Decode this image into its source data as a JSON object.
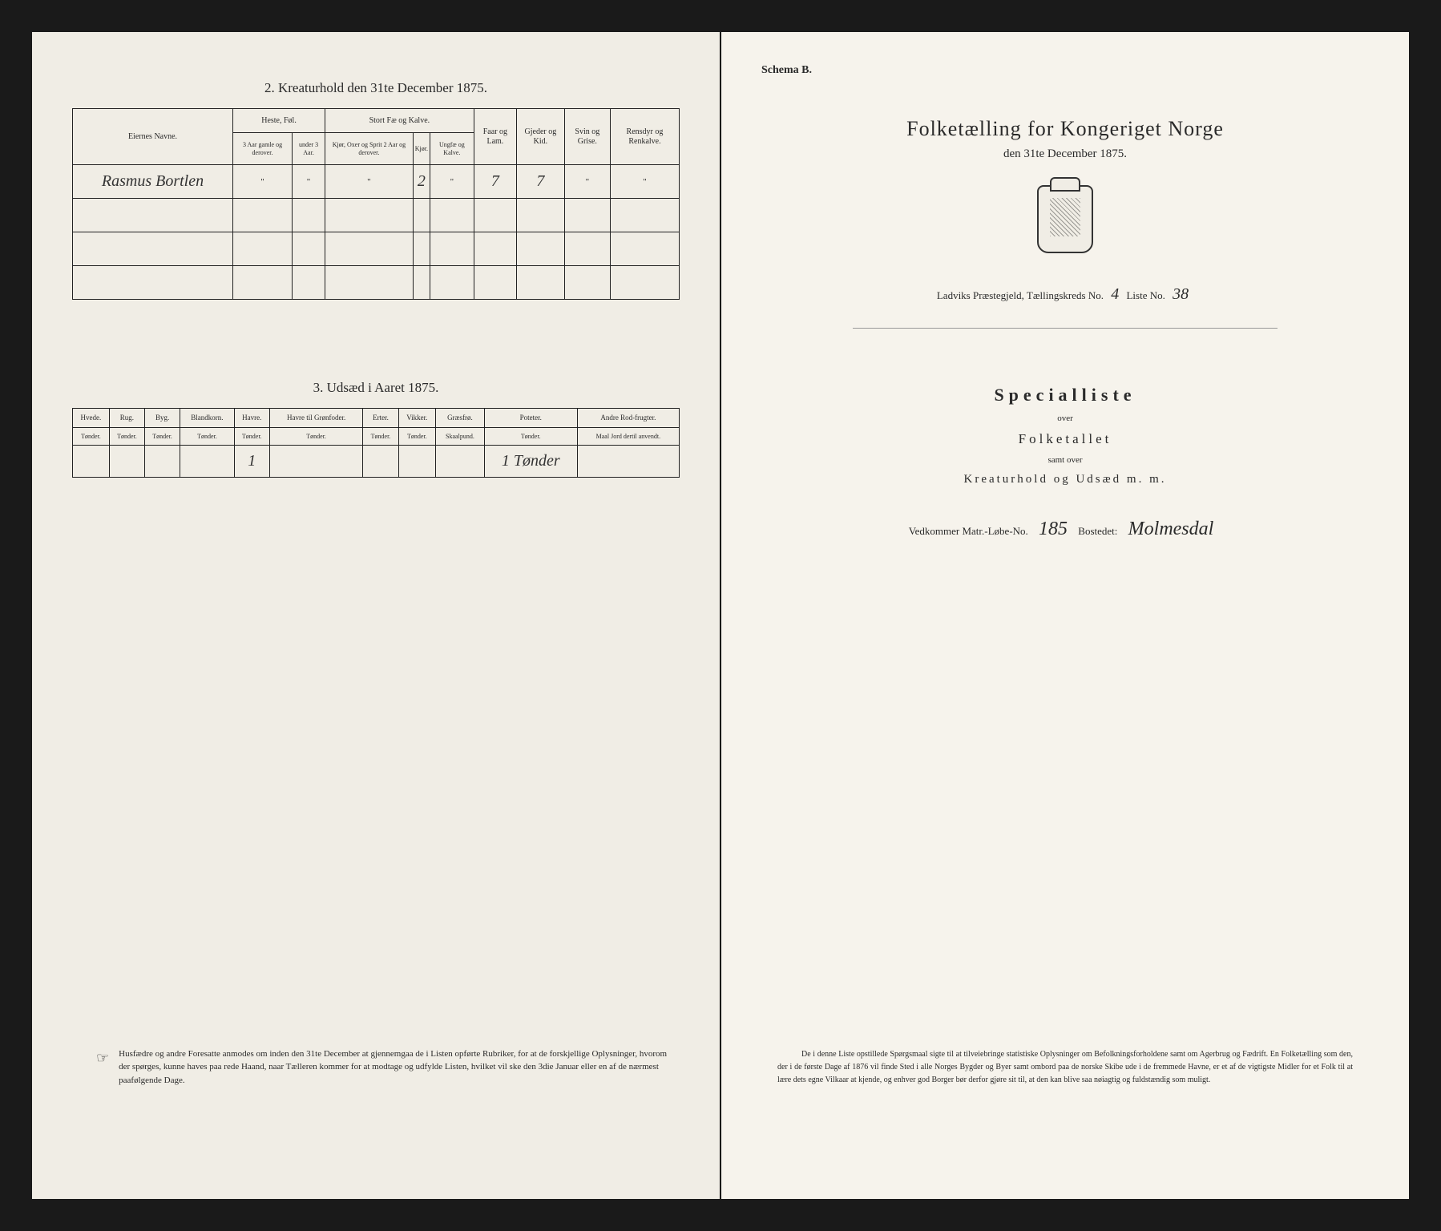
{
  "left": {
    "section2_title": "2. Kreaturhold den 31te December 1875.",
    "table2": {
      "headers": {
        "owner": "Eiernes Navne.",
        "horses": "Heste, Føl.",
        "cattle": "Stort Fæ og Kalve.",
        "sheep": "Faar og Lam.",
        "goats": "Gjeder og Kid.",
        "pigs": "Svin og Grise.",
        "reindeer": "Rensdyr og Renkalve."
      },
      "sub": {
        "h1": "3 Aar gamle og derover.",
        "h2": "under 3 Aar.",
        "c1": "Kjør, Oxer og Sprit 2 Aar og derover.",
        "c2": "Kjør.",
        "c3": "Ungfæ og Kalve."
      },
      "row1": {
        "owner": "Rasmus Bortlen",
        "h1": "\"",
        "h2": "\"",
        "c1": "\"",
        "c2": "2",
        "c3": "\"",
        "sheep": "7",
        "goats": "7",
        "pigs": "\"",
        "reindeer": "\""
      }
    },
    "section3_title": "3. Udsæd i Aaret 1875.",
    "table3": {
      "headers": [
        "Hvede.",
        "Rug.",
        "Byg.",
        "Blandkorn.",
        "Havre.",
        "Havre til Grønfoder.",
        "Erter.",
        "Vikker.",
        "Græsfrø.",
        "Poteter.",
        "Andre Rod-frugter."
      ],
      "unit": "Tønder.",
      "unit_special": "Skaalpund.",
      "unit_last": "Maal Jord dertil anvendt.",
      "row": {
        "havre": "1",
        "poteter": "1 Tønder"
      }
    },
    "footnote": "Husfædre og andre Foresatte anmodes om inden den 31te December at gjennemgaa de i Listen opførte Rubriker, for at de forskjellige Oplysninger, hvorom der spørges, kunne haves paa rede Haand, naar Tælleren kommer for at modtage og udfylde Listen, hvilket vil ske den 3die Januar eller en af de nærmest paafølgende Dage."
  },
  "right": {
    "schema": "Schema B.",
    "main_title": "Folketælling for Kongeriget Norge",
    "subtitle": "den 31te December 1875.",
    "meta_prefix": "Ladviks Præstegjeld, Tællingskreds No.",
    "kreds_no": "4",
    "liste_label": "Liste No.",
    "liste_no": "38",
    "special": "Specialliste",
    "over1": "over",
    "folketallet": "Folketallet",
    "samt": "samt over",
    "kreatur": "Kreaturhold og Udsæd m. m.",
    "vedkommer_label": "Vedkommer Matr.-Løbe-No.",
    "matr_no": "185",
    "bostedet_label": "Bostedet:",
    "bostedet": "Molmesdal",
    "footnote": "De i denne Liste opstillede Spørgsmaal sigte til at tilveiebringe statistiske Oplysninger om Befolkningsforholdene samt om Agerbrug og Fædrift. En Folketælling som den, der i de første Dage af 1876 vil finde Sted i alle Norges Bygder og Byer samt ombord paa de norske Skibe ude i de fremmede Havne, er et af de vigtigste Midler for et Folk til at lære dets egne Vilkaar at kjende, og enhver god Borger bør derfor gjøre sit til, at den kan blive saa nøiagtig og fuldstændig som muligt."
  }
}
